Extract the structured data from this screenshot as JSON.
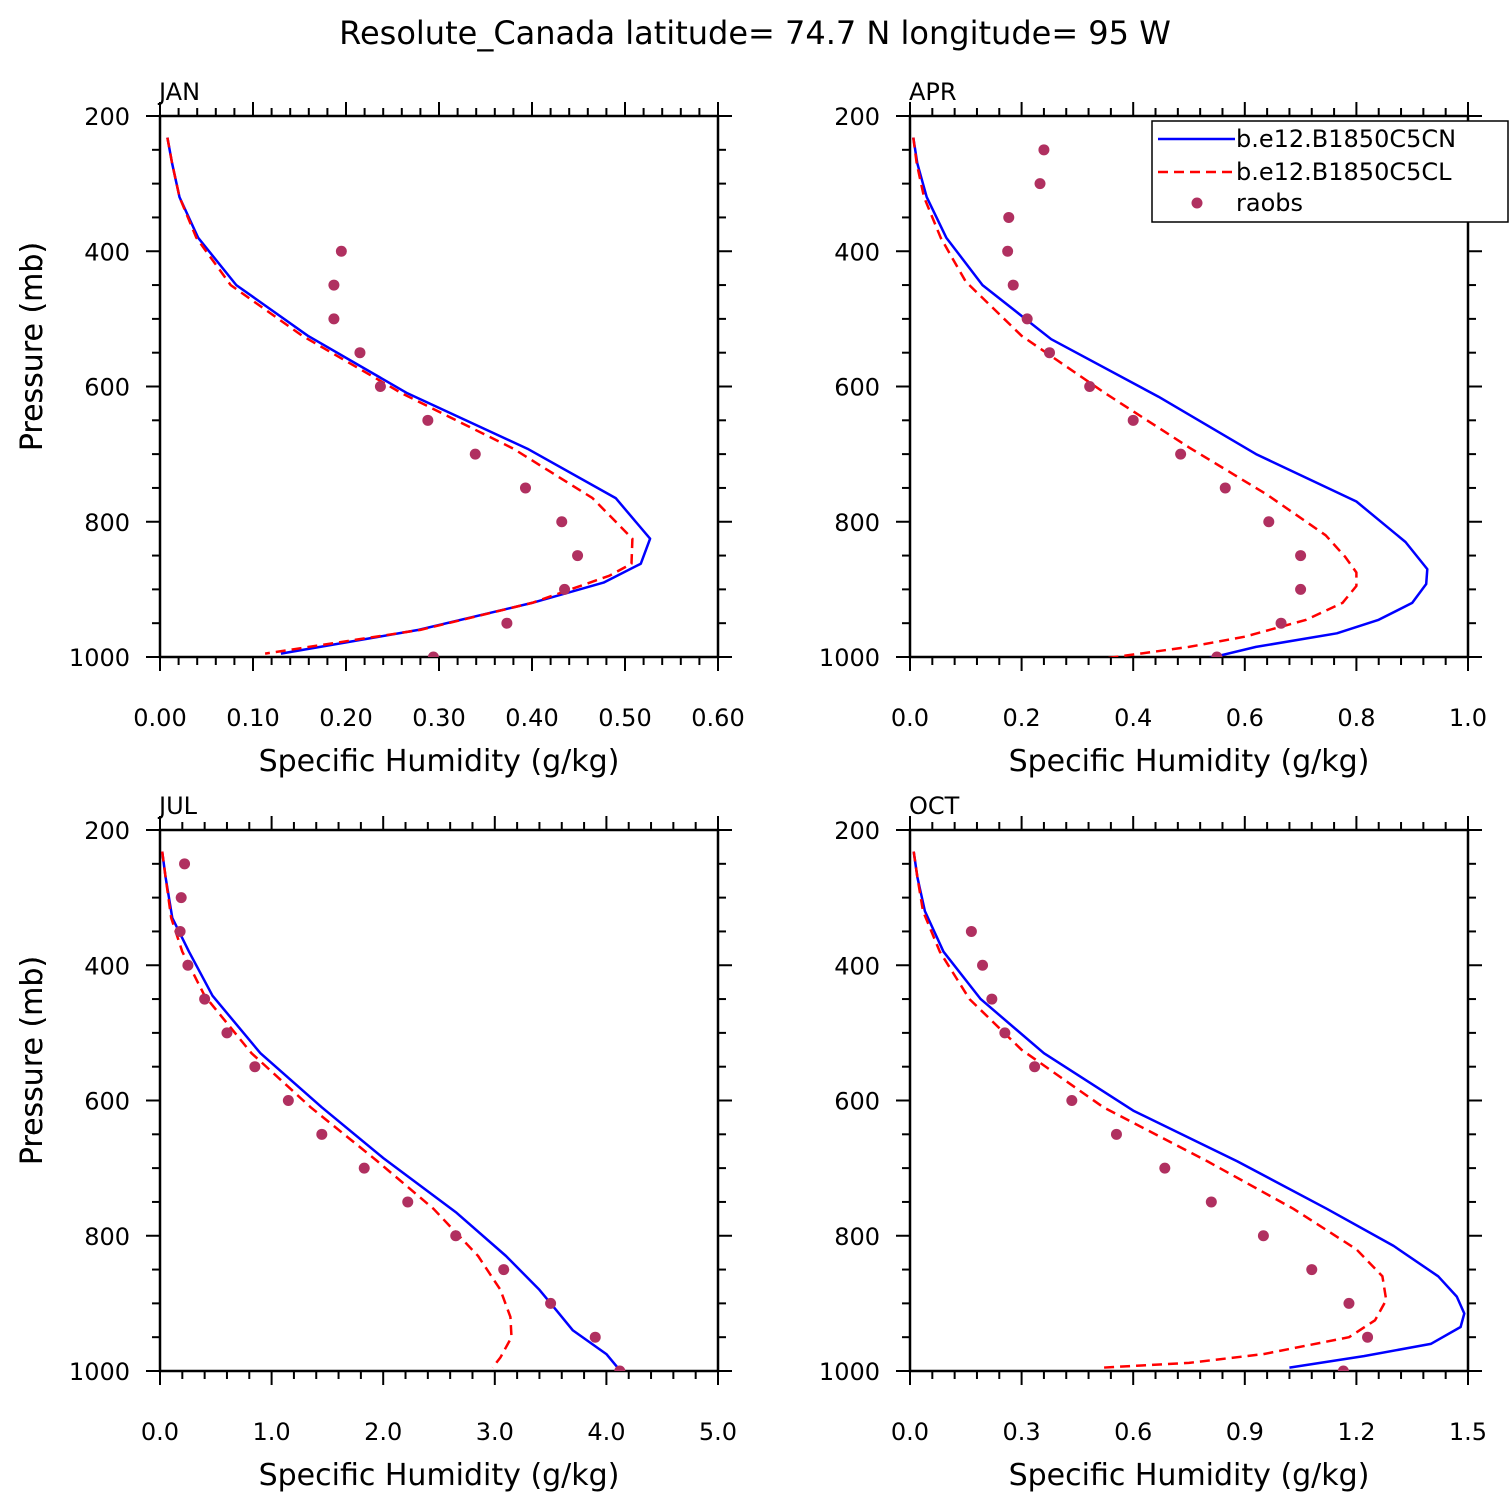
{
  "figure": {
    "title": "Resolute_Canada  latitude= 74.7 N longitude= 95 W"
  },
  "legend": {
    "entries": [
      {
        "label": "b.e12.B1850C5CN",
        "color": "#0000ff",
        "style": "solid"
      },
      {
        "label": "b.e12.B1850C5CL",
        "color": "#ff0000",
        "style": "dashed"
      },
      {
        "label": "raobs",
        "color": "#b03060",
        "style": "dot"
      }
    ]
  },
  "chart_data": [
    {
      "type": "line",
      "panel": "JAN",
      "xlabel": "Specific Humidity (g/kg)",
      "ylabel": "Pressure (mb)",
      "xlim": [
        0,
        0.6
      ],
      "ylim": [
        200,
        1000
      ],
      "y_inverted": true,
      "xticks": [
        "0.00",
        "0.10",
        "0.20",
        "0.30",
        "0.40",
        "0.50",
        "0.60"
      ],
      "yticks": [
        "200",
        "400",
        "600",
        "800",
        "1000"
      ],
      "series": [
        {
          "name": "b.e12.B1850C5CN",
          "color": "#0000ff",
          "style": "solid",
          "points": [
            [
              0.008,
              232
            ],
            [
              0.013,
              270
            ],
            [
              0.021,
              320
            ],
            [
              0.041,
              380
            ],
            [
              0.082,
              450
            ],
            [
              0.159,
              525
            ],
            [
              0.266,
              610
            ],
            [
              0.395,
              692
            ],
            [
              0.49,
              765
            ],
            [
              0.527,
              825
            ],
            [
              0.517,
              862
            ],
            [
              0.477,
              890
            ],
            [
              0.4,
              920
            ],
            [
              0.278,
              960
            ],
            [
              0.13,
              995
            ]
          ]
        },
        {
          "name": "b.e12.B1850C5CL",
          "color": "#ff0000",
          "style": "dashed",
          "points": [
            [
              0.008,
              232
            ],
            [
              0.013,
              270
            ],
            [
              0.021,
              320
            ],
            [
              0.039,
              380
            ],
            [
              0.076,
              450
            ],
            [
              0.153,
              525
            ],
            [
              0.26,
              610
            ],
            [
              0.38,
              692
            ],
            [
              0.465,
              765
            ],
            [
              0.508,
              825
            ],
            [
              0.507,
              862
            ],
            [
              0.483,
              880
            ],
            [
              0.4,
              920
            ],
            [
              0.28,
              960
            ],
            [
              0.113,
              995
            ]
          ]
        },
        {
          "name": "raobs",
          "color": "#b03060",
          "style": "dot",
          "points": [
            [
              0.195,
              400
            ],
            [
              0.187,
              450
            ],
            [
              0.187,
              500
            ],
            [
              0.215,
              550
            ],
            [
              0.237,
              600
            ],
            [
              0.288,
              650
            ],
            [
              0.339,
              700
            ],
            [
              0.393,
              750
            ],
            [
              0.432,
              800
            ],
            [
              0.449,
              850
            ],
            [
              0.435,
              900
            ],
            [
              0.373,
              950
            ],
            [
              0.294,
              1000
            ]
          ]
        }
      ]
    },
    {
      "type": "line",
      "panel": "APR",
      "xlabel": "Specific Humidity (g/kg)",
      "ylabel": "Pressure (mb)",
      "xlim": [
        0,
        1.0
      ],
      "ylim": [
        200,
        1000
      ],
      "y_inverted": true,
      "xticks": [
        "0.0",
        "0.2",
        "0.4",
        "0.6",
        "0.8",
        "1.0"
      ],
      "yticks": [
        "200",
        "400",
        "600",
        "800",
        "1000"
      ],
      "series": [
        {
          "name": "b.e12.B1850C5CN",
          "color": "#0000ff",
          "style": "solid",
          "points": [
            [
              0.006,
              232
            ],
            [
              0.013,
              270
            ],
            [
              0.03,
              320
            ],
            [
              0.065,
              380
            ],
            [
              0.13,
              450
            ],
            [
              0.253,
              530
            ],
            [
              0.445,
              615
            ],
            [
              0.62,
              700
            ],
            [
              0.8,
              770
            ],
            [
              0.888,
              830
            ],
            [
              0.927,
              870
            ],
            [
              0.925,
              892
            ],
            [
              0.9,
              920
            ],
            [
              0.84,
              945
            ],
            [
              0.765,
              965
            ],
            [
              0.62,
              985
            ],
            [
              0.53,
              1003
            ]
          ]
        },
        {
          "name": "b.e12.B1850C5CL",
          "color": "#ff0000",
          "style": "dashed",
          "points": [
            [
              0.006,
              232
            ],
            [
              0.012,
              270
            ],
            [
              0.025,
              320
            ],
            [
              0.055,
              380
            ],
            [
              0.1,
              445
            ],
            [
              0.2,
              525
            ],
            [
              0.35,
              610
            ],
            [
              0.5,
              690
            ],
            [
              0.64,
              760
            ],
            [
              0.745,
              820
            ],
            [
              0.78,
              852
            ],
            [
              0.8,
              875
            ],
            [
              0.8,
              895
            ],
            [
              0.775,
              920
            ],
            [
              0.71,
              945
            ],
            [
              0.6,
              970
            ],
            [
              0.5,
              985
            ],
            [
              0.35,
              1002
            ]
          ]
        },
        {
          "name": "raobs",
          "color": "#b03060",
          "style": "dot",
          "points": [
            [
              0.24,
              250
            ],
            [
              0.233,
              300
            ],
            [
              0.177,
              350
            ],
            [
              0.175,
              400
            ],
            [
              0.185,
              450
            ],
            [
              0.21,
              500
            ],
            [
              0.25,
              550
            ],
            [
              0.322,
              600
            ],
            [
              0.4,
              650
            ],
            [
              0.485,
              700
            ],
            [
              0.565,
              750
            ],
            [
              0.643,
              800
            ],
            [
              0.7,
              850
            ],
            [
              0.7,
              900
            ],
            [
              0.665,
              950
            ],
            [
              0.55,
              1000
            ]
          ]
        }
      ]
    },
    {
      "type": "line",
      "panel": "JUL",
      "xlabel": "Specific Humidity (g/kg)",
      "ylabel": "Pressure (mb)",
      "xlim": [
        0,
        5.0
      ],
      "ylim": [
        200,
        1000
      ],
      "y_inverted": true,
      "xticks": [
        "0.0",
        "1.0",
        "2.0",
        "3.0",
        "4.0",
        "5.0"
      ],
      "yticks": [
        "200",
        "400",
        "600",
        "800",
        "1000"
      ],
      "series": [
        {
          "name": "b.e12.B1850C5CN",
          "color": "#0000ff",
          "style": "solid",
          "points": [
            [
              0.02,
              232
            ],
            [
              0.05,
              270
            ],
            [
              0.11,
              330
            ],
            [
              0.26,
              380
            ],
            [
              0.47,
              445
            ],
            [
              0.9,
              530
            ],
            [
              1.45,
              610
            ],
            [
              2.0,
              685
            ],
            [
              2.65,
              765
            ],
            [
              3.1,
              830
            ],
            [
              3.4,
              880
            ],
            [
              3.55,
              910
            ],
            [
              3.7,
              940
            ],
            [
              4.0,
              975
            ],
            [
              4.1,
              995
            ]
          ]
        },
        {
          "name": "b.e12.B1850C5CL",
          "color": "#ff0000",
          "style": "dashed",
          "points": [
            [
              0.02,
              232
            ],
            [
              0.05,
              270
            ],
            [
              0.1,
              330
            ],
            [
              0.2,
              380
            ],
            [
              0.4,
              445
            ],
            [
              0.82,
              530
            ],
            [
              1.35,
              610
            ],
            [
              1.95,
              690
            ],
            [
              2.45,
              760
            ],
            [
              2.85,
              830
            ],
            [
              3.05,
              880
            ],
            [
              3.14,
              920
            ],
            [
              3.15,
              950
            ],
            [
              3.05,
              980
            ],
            [
              2.98,
              995
            ]
          ]
        },
        {
          "name": "raobs",
          "color": "#b03060",
          "style": "dot",
          "points": [
            [
              0.22,
              250
            ],
            [
              0.19,
              300
            ],
            [
              0.18,
              350
            ],
            [
              0.25,
              400
            ],
            [
              0.4,
              450
            ],
            [
              0.6,
              500
            ],
            [
              0.85,
              550
            ],
            [
              1.15,
              600
            ],
            [
              1.45,
              650
            ],
            [
              1.83,
              700
            ],
            [
              2.22,
              750
            ],
            [
              2.65,
              800
            ],
            [
              3.08,
              850
            ],
            [
              3.5,
              900
            ],
            [
              3.9,
              950
            ],
            [
              4.12,
              1000
            ]
          ]
        }
      ]
    },
    {
      "type": "line",
      "panel": "OCT",
      "xlabel": "Specific Humidity (g/kg)",
      "ylabel": "Pressure (mb)",
      "xlim": [
        0,
        1.5
      ],
      "ylim": [
        200,
        1000
      ],
      "y_inverted": true,
      "xticks": [
        "0.0",
        "0.3",
        "0.6",
        "0.9",
        "1.2",
        "1.5"
      ],
      "yticks": [
        "200",
        "400",
        "600",
        "800",
        "1000"
      ],
      "series": [
        {
          "name": "b.e12.B1850C5CN",
          "color": "#0000ff",
          "style": "solid",
          "points": [
            [
              0.01,
              232
            ],
            [
              0.02,
              270
            ],
            [
              0.04,
              320
            ],
            [
              0.09,
              380
            ],
            [
              0.19,
              450
            ],
            [
              0.36,
              530
            ],
            [
              0.6,
              615
            ],
            [
              0.88,
              690
            ],
            [
              1.12,
              760
            ],
            [
              1.3,
              815
            ],
            [
              1.42,
              860
            ],
            [
              1.47,
              890
            ],
            [
              1.49,
              915
            ],
            [
              1.48,
              935
            ],
            [
              1.4,
              960
            ],
            [
              1.22,
              978
            ],
            [
              1.02,
              995
            ]
          ]
        },
        {
          "name": "b.e12.B1850C5CL",
          "color": "#ff0000",
          "style": "dashed",
          "points": [
            [
              0.01,
              232
            ],
            [
              0.02,
              270
            ],
            [
              0.035,
              320
            ],
            [
              0.08,
              380
            ],
            [
              0.16,
              450
            ],
            [
              0.3,
              525
            ],
            [
              0.52,
              610
            ],
            [
              0.8,
              690
            ],
            [
              1.03,
              760
            ],
            [
              1.2,
              820
            ],
            [
              1.27,
              860
            ],
            [
              1.28,
              895
            ],
            [
              1.25,
              925
            ],
            [
              1.18,
              950
            ],
            [
              0.95,
              975
            ],
            [
              0.75,
              988
            ],
            [
              0.52,
              995
            ]
          ]
        },
        {
          "name": "raobs",
          "color": "#b03060",
          "style": "dot",
          "points": [
            [
              0.165,
              350
            ],
            [
              0.195,
              400
            ],
            [
              0.22,
              450
            ],
            [
              0.255,
              500
            ],
            [
              0.335,
              550
            ],
            [
              0.435,
              600
            ],
            [
              0.555,
              650
            ],
            [
              0.685,
              700
            ],
            [
              0.81,
              750
            ],
            [
              0.95,
              800
            ],
            [
              1.08,
              850
            ],
            [
              1.18,
              900
            ],
            [
              1.23,
              950
            ],
            [
              1.165,
              1000
            ]
          ]
        }
      ]
    }
  ]
}
